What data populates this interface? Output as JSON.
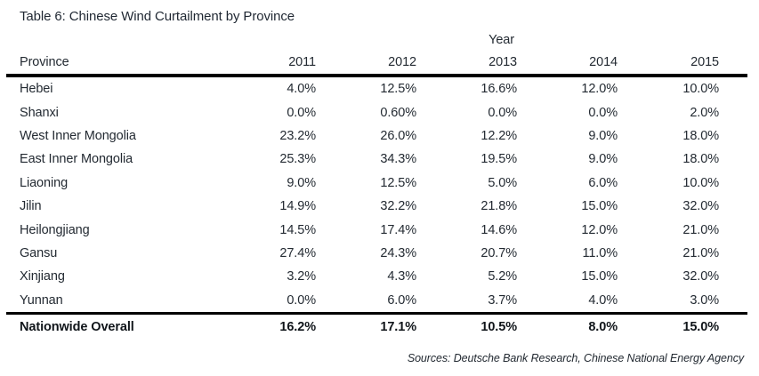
{
  "title": "Table 6: Chinese Wind Curtailment by Province",
  "table": {
    "year_group_label": "Year",
    "columns": [
      "Province",
      "2011",
      "2012",
      "2013",
      "2014",
      "2015"
    ],
    "rows": [
      {
        "province": "Hebei",
        "values": [
          "4.0%",
          "12.5%",
          "16.6%",
          "12.0%",
          "10.0%"
        ]
      },
      {
        "province": "Shanxi",
        "values": [
          "0.0%",
          "0.60%",
          "0.0%",
          "0.0%",
          "2.0%"
        ]
      },
      {
        "province": "West Inner Mongolia",
        "values": [
          "23.2%",
          "26.0%",
          "12.2%",
          "9.0%",
          "18.0%"
        ]
      },
      {
        "province": "East Inner Mongolia",
        "values": [
          "25.3%",
          "34.3%",
          "19.5%",
          "9.0%",
          "18.0%"
        ]
      },
      {
        "province": "Liaoning",
        "values": [
          "9.0%",
          "12.5%",
          "5.0%",
          "6.0%",
          "10.0%"
        ]
      },
      {
        "province": "Jilin",
        "values": [
          "14.9%",
          "32.2%",
          "21.8%",
          "15.0%",
          "32.0%"
        ]
      },
      {
        "province": "Heilongjiang",
        "values": [
          "14.5%",
          "17.4%",
          "14.6%",
          "12.0%",
          "21.0%"
        ]
      },
      {
        "province": "Gansu",
        "values": [
          "27.4%",
          "24.3%",
          "20.7%",
          "11.0%",
          "21.0%"
        ]
      },
      {
        "province": "Xinjiang",
        "values": [
          "3.2%",
          "4.3%",
          "5.2%",
          "15.0%",
          "32.0%"
        ]
      },
      {
        "province": "Yunnan",
        "values": [
          "0.0%",
          "6.0%",
          "3.7%",
          "4.0%",
          "3.0%"
        ]
      }
    ],
    "footer": {
      "label": "Nationwide Overall",
      "values": [
        "16.2%",
        "17.1%",
        "10.5%",
        "8.0%",
        "15.0%"
      ]
    }
  },
  "source_note": "Sources: Deutsche Bank Research, Chinese National Energy Agency"
}
